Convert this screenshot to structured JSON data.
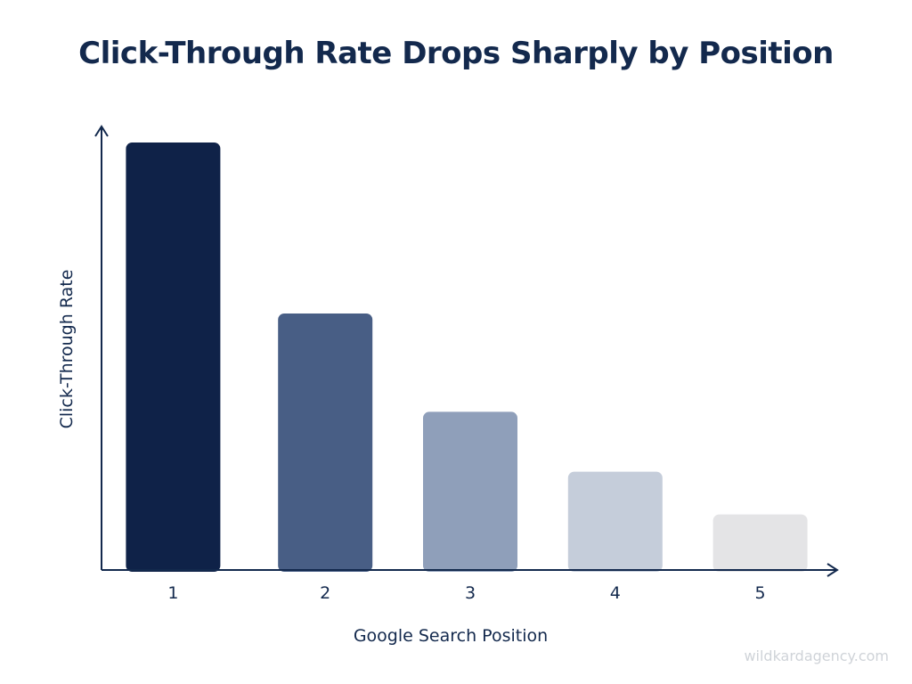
{
  "chart_data": {
    "type": "bar",
    "title": "Click-Through Rate Drops Sharply by Position",
    "xlabel": "Google Search Position",
    "ylabel": "Click-Through Rate",
    "categories": [
      "1",
      "2",
      "3",
      "4",
      "5"
    ],
    "values": [
      100,
      60,
      37,
      23,
      13
    ],
    "ylim": [
      0,
      100
    ],
    "show_y_ticks": false,
    "grid": false,
    "legend": "none",
    "bar_colors": [
      "#0f2248",
      "#485e85",
      "#8f9fba",
      "#c5cdda",
      "#e4e4e6"
    ],
    "axis_color": "#13294d"
  },
  "watermark": "wildkardagency.com"
}
